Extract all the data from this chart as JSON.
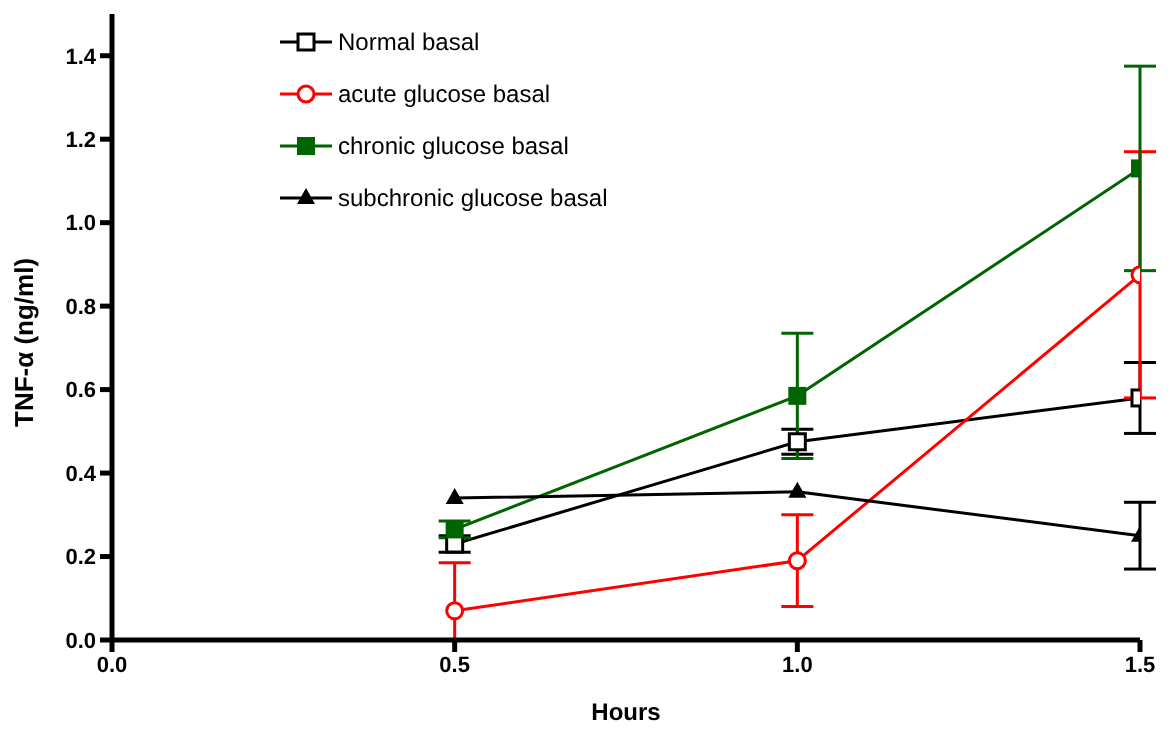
{
  "chart_data": {
    "type": "line",
    "xlabel": "Hours",
    "ylabel": "TNF-α (ng/ml)",
    "x": [
      0.5,
      1.0,
      1.5
    ],
    "xlim": [
      0,
      1.5
    ],
    "xticks": [
      {
        "value": 0,
        "label": "0.0"
      },
      {
        "value": 0.5,
        "label": "0.5"
      },
      {
        "value": 1,
        "label": "1.0"
      },
      {
        "value": 1.5,
        "label": "1.5"
      }
    ],
    "ylim": [
      0,
      1.5
    ],
    "yticks": [
      {
        "value": 0,
        "label": "0.0"
      },
      {
        "value": 0.2,
        "label": "0.2"
      },
      {
        "value": 0.4,
        "label": "0.4"
      },
      {
        "value": 0.6,
        "label": "0.6"
      },
      {
        "value": 0.8,
        "label": "0.8"
      },
      {
        "value": 1,
        "label": "1.0"
      },
      {
        "value": 1.2,
        "label": "1.2"
      },
      {
        "value": 1.4,
        "label": "1.4"
      }
    ],
    "grid": false,
    "legend": "top left",
    "line_style": "solid",
    "series": [
      {
        "name": "Normal basal",
        "color": "#000000",
        "marker": "square-open",
        "values": [
          0.23,
          0.475,
          0.58
        ],
        "errors": [
          0.02,
          0.03,
          0.085
        ]
      },
      {
        "name": "acute glucose basal",
        "color": "#ff0000",
        "marker": "circle-open",
        "values": [
          0.07,
          0.19,
          0.875
        ],
        "errors": [
          [
            0,
            0.185
          ],
          0.11,
          0.295
        ]
      },
      {
        "name": "chronic glucose basal",
        "color": "#006400",
        "marker": "square",
        "values": [
          0.265,
          0.585,
          1.13
        ],
        "errors": [
          0.02,
          0.15,
          0.245
        ]
      },
      {
        "name": "subchronic glucose basal",
        "color": "#000000",
        "marker": "triangle",
        "values": [
          0.34,
          0.355,
          0.25
        ],
        "errors": [
          null,
          null,
          0.08
        ]
      }
    ]
  }
}
